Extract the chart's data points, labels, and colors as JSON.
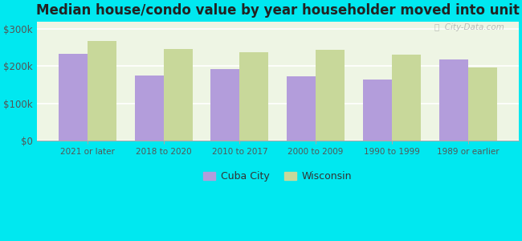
{
  "title": "Median house/condo value by year householder moved into unit",
  "categories": [
    "2021 or later",
    "2018 to 2020",
    "2010 to 2017",
    "2000 to 2009",
    "1990 to 1999",
    "1989 or earlier"
  ],
  "cuba_city": [
    232000,
    175000,
    192000,
    172000,
    163000,
    218000
  ],
  "wisconsin": [
    268000,
    246000,
    238000,
    243000,
    230000,
    196000
  ],
  "cuba_city_color": "#b39ddb",
  "wisconsin_color": "#c8d89a",
  "background_outer": "#00e8f0",
  "background_inner": "#eef5e4",
  "title_fontsize": 12,
  "ylabel_ticks": [
    0,
    100000,
    200000,
    300000
  ],
  "ylabel_labels": [
    "$0",
    "$100k",
    "$200k",
    "$300k"
  ],
  "ylim": [
    0,
    320000
  ],
  "legend_labels": [
    "Cuba City",
    "Wisconsin"
  ],
  "bar_width": 0.38,
  "watermark_text": "ⓘ  City-Data.com"
}
